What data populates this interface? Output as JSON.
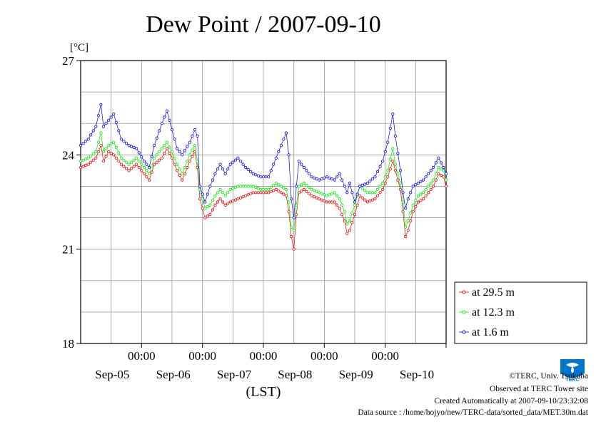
{
  "chart_data": {
    "type": "line",
    "title": "Dew Point / 2007-09-10",
    "unit_label": "[°C]",
    "xlabel": "(LST)",
    "ylim": [
      18,
      27
    ],
    "y_ticks": [
      "18",
      "21",
      "24",
      "27"
    ],
    "x_range_hours": [
      0,
      144
    ],
    "x_ticks": [
      {
        "hour": 24,
        "time": "00:00",
        "date": "Sep-05"
      },
      {
        "hour": 48,
        "time": "00:00",
        "date": "Sep-06"
      },
      {
        "hour": 72,
        "time": "00:00",
        "date": "Sep-07"
      },
      {
        "hour": 96,
        "time": "00:00",
        "date": "Sep-08"
      },
      {
        "hour": 120,
        "time": "00:00",
        "date": "Sep-09"
      },
      {
        "hour": 144,
        "time": "",
        "date": "Sep-10"
      }
    ],
    "grid": true,
    "legend_position": "right",
    "series": [
      {
        "name": "at 29.5 m",
        "color": "#ee0000",
        "points": [
          [
            0,
            23.6
          ],
          [
            3,
            23.7
          ],
          [
            6,
            23.9
          ],
          [
            8,
            24.3
          ],
          [
            9,
            23.8
          ],
          [
            11,
            24.1
          ],
          [
            13,
            24.0
          ],
          [
            16,
            23.7
          ],
          [
            19,
            23.5
          ],
          [
            22,
            23.7
          ],
          [
            25,
            23.4
          ],
          [
            27,
            23.2
          ],
          [
            29,
            23.7
          ],
          [
            32,
            23.9
          ],
          [
            34,
            24.2
          ],
          [
            36,
            23.9
          ],
          [
            38,
            23.5
          ],
          [
            40,
            23.2
          ],
          [
            43,
            23.8
          ],
          [
            45,
            24.1
          ],
          [
            46,
            23.6
          ],
          [
            47,
            22.6
          ],
          [
            49,
            22.0
          ],
          [
            51,
            22.1
          ],
          [
            53,
            22.4
          ],
          [
            55,
            22.6
          ],
          [
            57,
            22.4
          ],
          [
            59,
            22.5
          ],
          [
            62,
            22.6
          ],
          [
            65,
            22.7
          ],
          [
            68,
            22.8
          ],
          [
            71,
            22.8
          ],
          [
            74,
            22.8
          ],
          [
            77,
            22.9
          ],
          [
            79,
            22.8
          ],
          [
            81,
            22.7
          ],
          [
            82,
            22.2
          ],
          [
            83,
            21.4
          ],
          [
            84,
            21.0
          ],
          [
            85,
            22.1
          ],
          [
            86,
            22.8
          ],
          [
            88,
            22.9
          ],
          [
            91,
            22.7
          ],
          [
            94,
            22.6
          ],
          [
            97,
            22.5
          ],
          [
            100,
            22.5
          ],
          [
            102,
            22.3
          ],
          [
            104,
            21.9
          ],
          [
            105,
            21.5
          ],
          [
            106,
            21.6
          ],
          [
            108,
            22.1
          ],
          [
            110,
            22.7
          ],
          [
            113,
            22.5
          ],
          [
            116,
            22.6
          ],
          [
            119,
            22.9
          ],
          [
            121,
            23.3
          ],
          [
            123,
            23.8
          ],
          [
            124,
            23.5
          ],
          [
            126,
            22.9
          ],
          [
            127,
            22.2
          ],
          [
            128,
            21.4
          ],
          [
            129,
            21.6
          ],
          [
            131,
            22.2
          ],
          [
            133,
            22.5
          ],
          [
            135,
            22.6
          ],
          [
            137,
            22.8
          ],
          [
            139,
            23.0
          ],
          [
            141,
            23.4
          ],
          [
            143,
            23.3
          ],
          [
            144,
            23.0
          ]
        ]
      },
      {
        "name": "at 12.3 m",
        "color": "#00ee00",
        "points": [
          [
            0,
            23.8
          ],
          [
            3,
            23.9
          ],
          [
            6,
            24.1
          ],
          [
            8,
            24.7
          ],
          [
            9,
            24.1
          ],
          [
            11,
            24.3
          ],
          [
            13,
            24.4
          ],
          [
            16,
            23.9
          ],
          [
            19,
            23.7
          ],
          [
            22,
            23.9
          ],
          [
            25,
            23.6
          ],
          [
            27,
            23.4
          ],
          [
            29,
            23.9
          ],
          [
            32,
            24.2
          ],
          [
            34,
            24.4
          ],
          [
            36,
            24.1
          ],
          [
            38,
            23.7
          ],
          [
            40,
            23.4
          ],
          [
            43,
            24.0
          ],
          [
            45,
            24.3
          ],
          [
            46,
            23.8
          ],
          [
            47,
            22.9
          ],
          [
            49,
            22.3
          ],
          [
            51,
            22.4
          ],
          [
            53,
            22.7
          ],
          [
            55,
            22.9
          ],
          [
            57,
            22.7
          ],
          [
            59,
            22.9
          ],
          [
            62,
            23.0
          ],
          [
            65,
            23.0
          ],
          [
            68,
            23.0
          ],
          [
            71,
            22.9
          ],
          [
            74,
            22.9
          ],
          [
            77,
            23.1
          ],
          [
            79,
            23.0
          ],
          [
            81,
            22.9
          ],
          [
            82,
            22.5
          ],
          [
            83,
            21.7
          ],
          [
            84,
            21.6
          ],
          [
            85,
            22.4
          ],
          [
            86,
            23.0
          ],
          [
            88,
            23.1
          ],
          [
            91,
            22.9
          ],
          [
            94,
            22.8
          ],
          [
            97,
            22.7
          ],
          [
            100,
            22.8
          ],
          [
            102,
            22.6
          ],
          [
            104,
            22.2
          ],
          [
            105,
            21.8
          ],
          [
            106,
            21.9
          ],
          [
            108,
            22.4
          ],
          [
            110,
            23.0
          ],
          [
            113,
            22.8
          ],
          [
            116,
            22.8
          ],
          [
            119,
            23.1
          ],
          [
            121,
            23.5
          ],
          [
            123,
            24.2
          ],
          [
            124,
            23.7
          ],
          [
            126,
            23.1
          ],
          [
            127,
            22.5
          ],
          [
            128,
            21.7
          ],
          [
            129,
            21.9
          ],
          [
            131,
            22.4
          ],
          [
            133,
            22.7
          ],
          [
            135,
            22.8
          ],
          [
            137,
            23.0
          ],
          [
            139,
            23.2
          ],
          [
            141,
            23.6
          ],
          [
            143,
            23.5
          ],
          [
            144,
            23.2
          ]
        ]
      },
      {
        "name": "at 1.6 m",
        "color": "#0000ee",
        "points": [
          [
            0,
            24.3
          ],
          [
            3,
            24.5
          ],
          [
            6,
            24.9
          ],
          [
            8,
            25.6
          ],
          [
            9,
            24.9
          ],
          [
            11,
            25.1
          ],
          [
            13,
            25.3
          ],
          [
            16,
            24.5
          ],
          [
            19,
            24.3
          ],
          [
            22,
            24.2
          ],
          [
            25,
            23.8
          ],
          [
            27,
            23.6
          ],
          [
            29,
            24.3
          ],
          [
            32,
            25.0
          ],
          [
            34,
            25.4
          ],
          [
            36,
            24.8
          ],
          [
            38,
            24.2
          ],
          [
            40,
            24.0
          ],
          [
            43,
            24.4
          ],
          [
            45,
            24.8
          ],
          [
            46,
            24.6
          ],
          [
            47,
            23.0
          ],
          [
            49,
            22.5
          ],
          [
            51,
            23.0
          ],
          [
            53,
            23.4
          ],
          [
            55,
            23.7
          ],
          [
            57,
            23.4
          ],
          [
            59,
            23.7
          ],
          [
            62,
            23.9
          ],
          [
            65,
            23.6
          ],
          [
            68,
            23.4
          ],
          [
            71,
            23.3
          ],
          [
            74,
            23.3
          ],
          [
            77,
            23.9
          ],
          [
            79,
            24.3
          ],
          [
            81,
            24.7
          ],
          [
            82,
            24.0
          ],
          [
            83,
            22.6
          ],
          [
            84,
            22.0
          ],
          [
            85,
            23.0
          ],
          [
            86,
            23.8
          ],
          [
            88,
            23.6
          ],
          [
            91,
            23.3
          ],
          [
            94,
            23.2
          ],
          [
            97,
            23.3
          ],
          [
            100,
            23.2
          ],
          [
            102,
            23.4
          ],
          [
            104,
            23.0
          ],
          [
            105,
            22.8
          ],
          [
            106,
            23.1
          ],
          [
            108,
            22.5
          ],
          [
            110,
            23.0
          ],
          [
            113,
            23.1
          ],
          [
            116,
            23.3
          ],
          [
            119,
            23.8
          ],
          [
            121,
            24.4
          ],
          [
            123,
            25.3
          ],
          [
            124,
            24.6
          ],
          [
            126,
            23.5
          ],
          [
            127,
            22.8
          ],
          [
            128,
            22.3
          ],
          [
            129,
            22.6
          ],
          [
            131,
            23.0
          ],
          [
            133,
            23.1
          ],
          [
            135,
            23.2
          ],
          [
            137,
            23.4
          ],
          [
            139,
            23.6
          ],
          [
            141,
            23.9
          ],
          [
            143,
            23.6
          ],
          [
            144,
            23.4
          ]
        ]
      }
    ]
  },
  "credits": {
    "copyright": "©TERC, Univ. Tsukuba",
    "observed": "Observed at TERC Tower site",
    "created": "Created Automatically at 2007-09-10/23:32:08",
    "source": "Data source : /home/hojyo/new/TERC-data/sorted_data/MET.30m.dat"
  },
  "logo": {
    "icon": "terc-logo",
    "text": "TERC",
    "color": "#0077cc"
  }
}
